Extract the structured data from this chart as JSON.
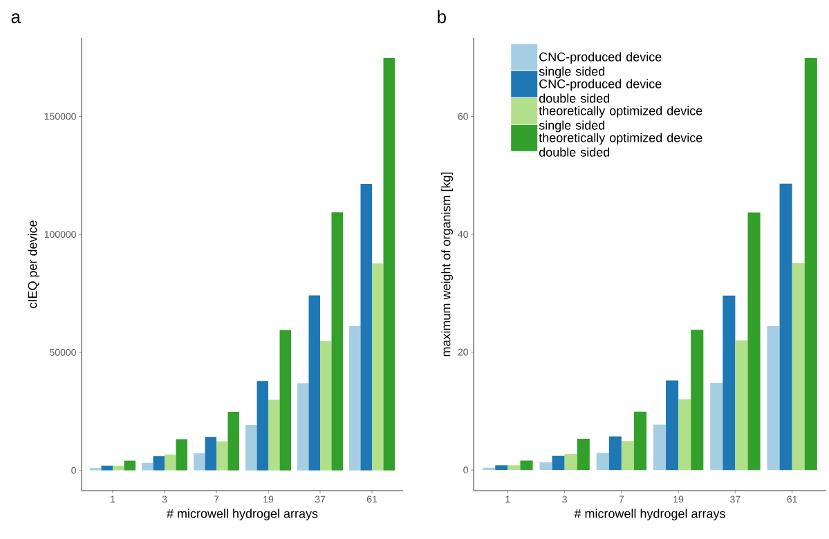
{
  "chart_data": [
    {
      "type": "bar",
      "title": "a",
      "xlabel": "# microwell hydrogel arrays",
      "ylabel": "cIEQ per device",
      "categories": [
        "1",
        "3",
        "7",
        "19",
        "37",
        "61"
      ],
      "series": [
        {
          "color": "#a6cee3",
          "values": [
            1000,
            3200,
            7200,
            19200,
            36900,
            61100
          ]
        },
        {
          "color": "#1f78b4",
          "values": [
            2000,
            6000,
            14200,
            37900,
            74100,
            121400
          ]
        },
        {
          "color": "#b2df8a",
          "values": [
            2000,
            6700,
            12300,
            29900,
            54900,
            87700
          ]
        },
        {
          "color": "#33a02c",
          "values": [
            4100,
            13200,
            24800,
            59500,
            109300,
            174700
          ]
        }
      ],
      "ylim": [
        -8600,
        183200
      ],
      "yticks": [
        0,
        50000,
        100000,
        150000
      ],
      "grid": false,
      "legend": false
    },
    {
      "type": "bar",
      "title": "b",
      "xlabel": "# microwell hydrogel arrays",
      "ylabel": "maximum weight of organism [kg]",
      "categories": [
        "1",
        "3",
        "7",
        "19",
        "37",
        "61"
      ],
      "series": [
        {
          "name": "CNC-produced device single sided",
          "color": "#a6cee3",
          "values": [
            0.4,
            1.3,
            2.9,
            7.7,
            14.8,
            24.4
          ]
        },
        {
          "name": "CNC-produced device double sided",
          "color": "#1f78b4",
          "values": [
            0.8,
            2.4,
            5.7,
            15.2,
            29.6,
            48.6
          ]
        },
        {
          "name": "theoretically optimized device single sided",
          "color": "#b2df8a",
          "values": [
            0.8,
            2.7,
            4.9,
            12.0,
            22.0,
            35.1
          ]
        },
        {
          "name": "theoretically optimized device double sided",
          "color": "#33a02c",
          "values": [
            1.6,
            5.3,
            9.9,
            23.8,
            43.7,
            69.9
          ]
        }
      ],
      "ylim": [
        -3.5,
        73.3
      ],
      "yticks": [
        0,
        20,
        40,
        60
      ],
      "grid": false,
      "legend": "top left"
    }
  ]
}
